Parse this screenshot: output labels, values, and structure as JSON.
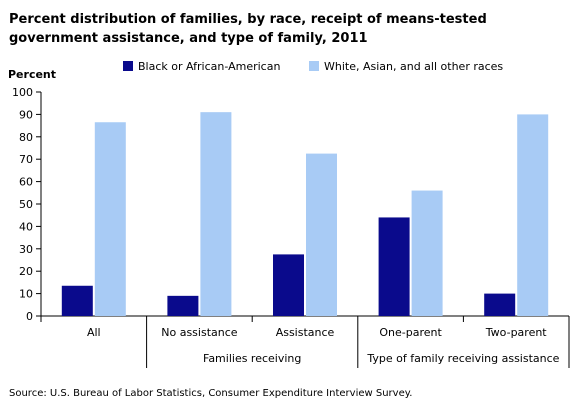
{
  "title": "Percent distribution of families, by race, receipt of means-tested government assistance, and type of family, 2011",
  "source": "Source: U.S. Bureau of Labor Statistics, Consumer Expenditure Interview Survey.",
  "chart_data": {
    "type": "bar",
    "title": "Percent distribution of families, by race, receipt of means-tested government assistance, and type of family, 2011",
    "ylabel": "Percent",
    "xlabel": "",
    "ylim": [
      0,
      100
    ],
    "yticks": [
      0,
      10,
      20,
      30,
      40,
      50,
      60,
      70,
      80,
      90,
      100
    ],
    "grid": false,
    "legend_position": "top",
    "categories": [
      "All",
      "No assistance",
      "Assistance",
      "One-parent",
      "Two-parent"
    ],
    "category_groups": [
      {
        "label": "Families receiving",
        "categories": [
          "No assistance",
          "Assistance"
        ]
      },
      {
        "label": "Type of family  receiving assistance",
        "categories": [
          "One-parent",
          "Two-parent"
        ]
      }
    ],
    "series": [
      {
        "name": "Black or African-American",
        "color": "#0a0a8c",
        "values": [
          13.5,
          9,
          27.5,
          44,
          10
        ]
      },
      {
        "name": "White, Asian, and all other races",
        "color": "#a8cbf5",
        "values": [
          86.5,
          91,
          72.5,
          56,
          90
        ]
      }
    ]
  }
}
